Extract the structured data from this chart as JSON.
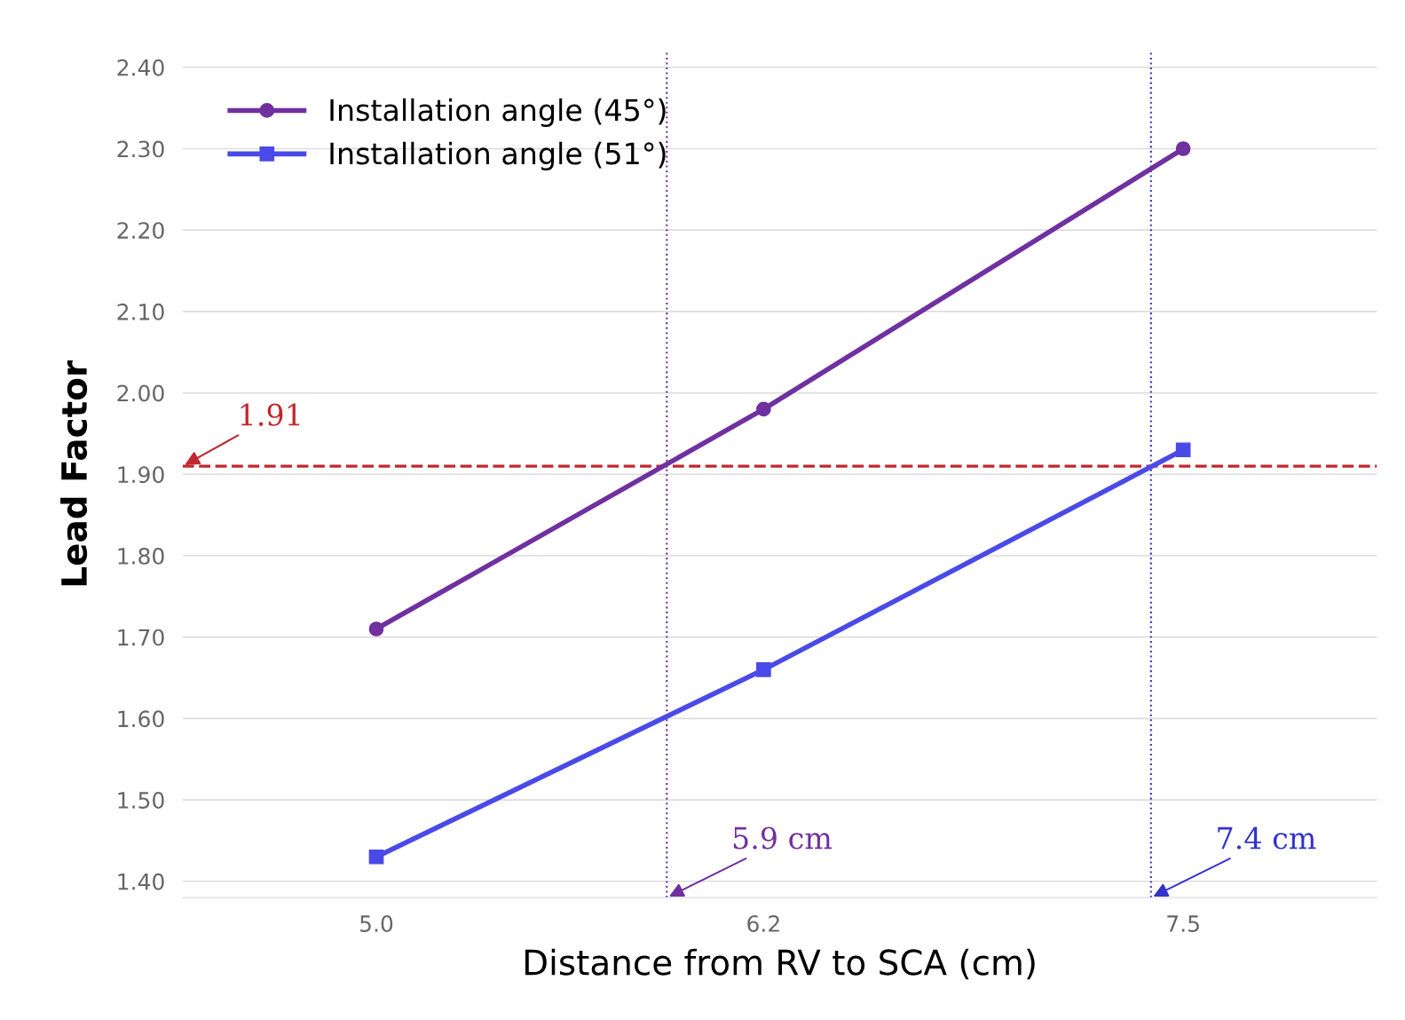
{
  "chart_data": {
    "type": "line",
    "xlabel": "Distance from RV to SCA (cm)",
    "ylabel": "Lead Factor",
    "x": [
      5.0,
      6.2,
      7.5
    ],
    "series": [
      {
        "name": "Installation angle (45°)",
        "color": "#7030a0",
        "marker": "circle",
        "values": [
          1.71,
          1.98,
          2.3
        ]
      },
      {
        "name": "Installation angle (51°)",
        "color": "#4a4ae8",
        "marker": "square",
        "values": [
          1.43,
          1.66,
          1.93
        ]
      }
    ],
    "xlim": [
      4.4,
      8.1
    ],
    "xticks": [
      {
        "value": 5.0,
        "label": "5.0"
      },
      6.2,
      7.5
    ],
    "ylim": [
      1.38,
      2.42
    ],
    "yticks": [
      {
        "value": 1.4,
        "label": "1.40"
      },
      {
        "value": 1.5,
        "label": "1.50"
      },
      {
        "value": 1.6,
        "label": "1.60"
      },
      {
        "value": 1.7,
        "label": "1.70"
      },
      {
        "value": 1.8,
        "label": "1.80"
      },
      {
        "value": 1.9,
        "label": "1.90"
      },
      {
        "value": 2.0,
        "label": "2.00"
      },
      {
        "value": 2.1,
        "label": "2.10"
      },
      {
        "value": 2.2,
        "label": "2.20"
      },
      {
        "value": 2.3,
        "label": "2.30"
      },
      {
        "value": 2.4,
        "label": "2.40"
      }
    ],
    "ref_lines": [
      {
        "axis": "y",
        "value": 1.91,
        "label": "1.91",
        "color": "#c0282d",
        "line_style": "dashed"
      },
      {
        "axis": "x",
        "value": 5.9,
        "label": "5.9 cm",
        "color": "#7030a0",
        "line_style": "dotted"
      },
      {
        "axis": "x",
        "value": 7.4,
        "label": "7.4 cm",
        "color": "#3333cc",
        "line_style": "dotted"
      }
    ],
    "grid": "y",
    "legend": "top left",
    "line_style": "solid"
  }
}
